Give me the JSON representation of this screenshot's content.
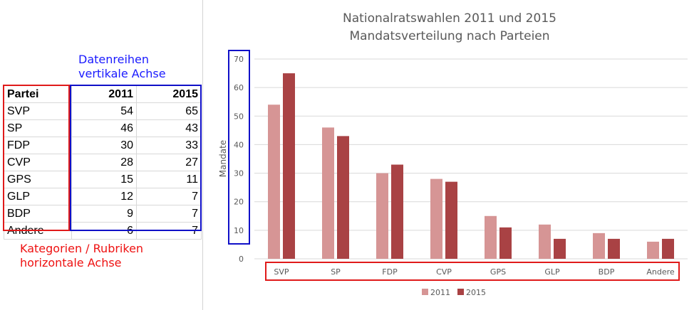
{
  "annotations": {
    "series_label_line1": "Datenreihen",
    "series_label_line2": "vertikale Achse",
    "category_label_line1": "Kategorien / Rubriken",
    "category_label_line2": "horizontale Achse"
  },
  "table": {
    "headers": [
      "Partei",
      "2011",
      "2015"
    ],
    "rows": [
      [
        "SVP",
        "54",
        "65"
      ],
      [
        "SP",
        "46",
        "43"
      ],
      [
        "FDP",
        "30",
        "33"
      ],
      [
        "CVP",
        "28",
        "27"
      ],
      [
        "GPS",
        "15",
        "11"
      ],
      [
        "GLP",
        "12",
        "7"
      ],
      [
        "BDP",
        "9",
        "7"
      ],
      [
        "Andere",
        "6",
        "7"
      ]
    ]
  },
  "colors": {
    "series_2011": "#d69595",
    "series_2015": "#a94244",
    "highlight_red": "#e01a1a",
    "highlight_blue": "#1010c8",
    "grid": "#d9d9d9",
    "text": "#595959"
  },
  "chart_data": {
    "type": "bar",
    "title": "Nationalratswahlen 2011 und 2015",
    "subtitle": "Mandatsverteilung nach Parteien",
    "xlabel": "",
    "ylabel": "Mandate",
    "ylim": [
      0,
      70
    ],
    "yticks": [
      0,
      10,
      20,
      30,
      40,
      50,
      60,
      70
    ],
    "grid": true,
    "legend": "bottom",
    "categories": [
      "SVP",
      "SP",
      "FDP",
      "CVP",
      "GPS",
      "GLP",
      "BDP",
      "Andere"
    ],
    "series": [
      {
        "name": "2011",
        "values": [
          54,
          46,
          30,
          28,
          15,
          12,
          9,
          6
        ]
      },
      {
        "name": "2015",
        "values": [
          65,
          43,
          33,
          27,
          11,
          7,
          7,
          7
        ]
      }
    ]
  }
}
